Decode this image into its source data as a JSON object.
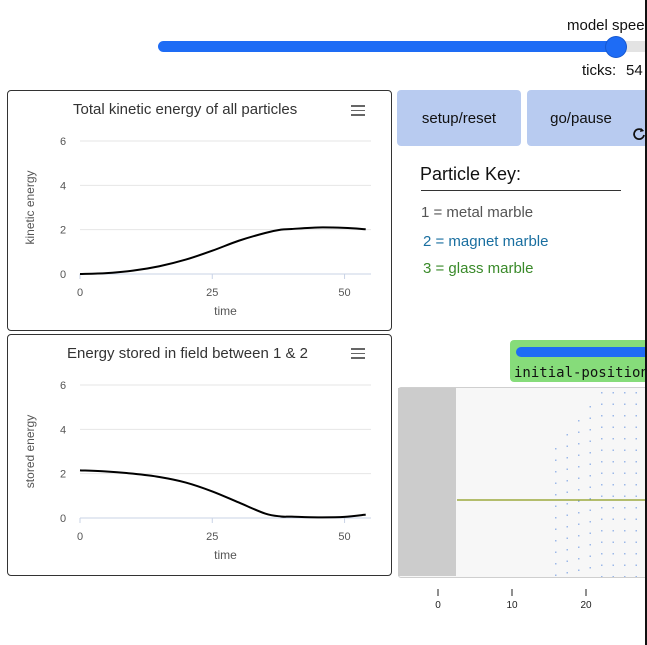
{
  "speed_slider": {
    "label": "model speed",
    "value_fraction": 0.91
  },
  "ticks": {
    "label": "ticks:",
    "value": "54"
  },
  "plot_kinetic": {
    "title": "Total kinetic energy of all particles",
    "menu_icon": "hamburger-icon"
  },
  "plot_stored": {
    "title": "Energy stored in field between 1 & 2",
    "menu_icon": "hamburger-icon"
  },
  "buttons": {
    "setup": "setup/reset",
    "go": "go/pause",
    "go_icon": "repeat-icon"
  },
  "particle_key": {
    "title": "Particle Key:",
    "items": [
      {
        "text": "1 = metal marble",
        "color": "#555555"
      },
      {
        "text": "2 = magnet marble",
        "color": "#1a6fa0"
      },
      {
        "text": "3 = glass marble",
        "color": "#3a8a2a"
      }
    ]
  },
  "initial_position_slider": {
    "label": "initial-position-pa",
    "color": "#86dc7a"
  },
  "world": {
    "axis_ticks": [
      "0",
      "10",
      "20"
    ],
    "line_color": "#8a9a1a"
  },
  "chart_data": [
    {
      "type": "line",
      "title": "Total kinetic energy of all particles",
      "xlabel": "time",
      "ylabel": "kinetic energy",
      "xlim": [
        0,
        55
      ],
      "ylim": [
        0,
        6
      ],
      "x_ticks": [
        0,
        25,
        50
      ],
      "y_ticks": [
        0,
        2,
        4,
        6
      ],
      "grid": true,
      "series": [
        {
          "x": [
            0,
            5,
            10,
            15,
            20,
            25,
            30,
            35,
            38,
            40,
            45,
            50,
            54
          ],
          "y": [
            0,
            0.04,
            0.15,
            0.35,
            0.65,
            1.05,
            1.5,
            1.85,
            2.0,
            2.03,
            2.1,
            2.08,
            2.02
          ]
        }
      ]
    },
    {
      "type": "line",
      "title": "Energy stored in field between 1 & 2",
      "xlabel": "time",
      "ylabel": "stored energy",
      "xlim": [
        0,
        55
      ],
      "ylim": [
        0,
        6
      ],
      "x_ticks": [
        0,
        25,
        50
      ],
      "y_ticks": [
        0,
        2,
        4,
        6
      ],
      "grid": true,
      "series": [
        {
          "x": [
            0,
            5,
            10,
            15,
            20,
            25,
            30,
            35,
            38,
            40,
            45,
            50,
            54
          ],
          "y": [
            2.15,
            2.1,
            2.0,
            1.85,
            1.6,
            1.2,
            0.7,
            0.2,
            0.07,
            0.06,
            0.03,
            0.05,
            0.15
          ]
        }
      ]
    }
  ]
}
